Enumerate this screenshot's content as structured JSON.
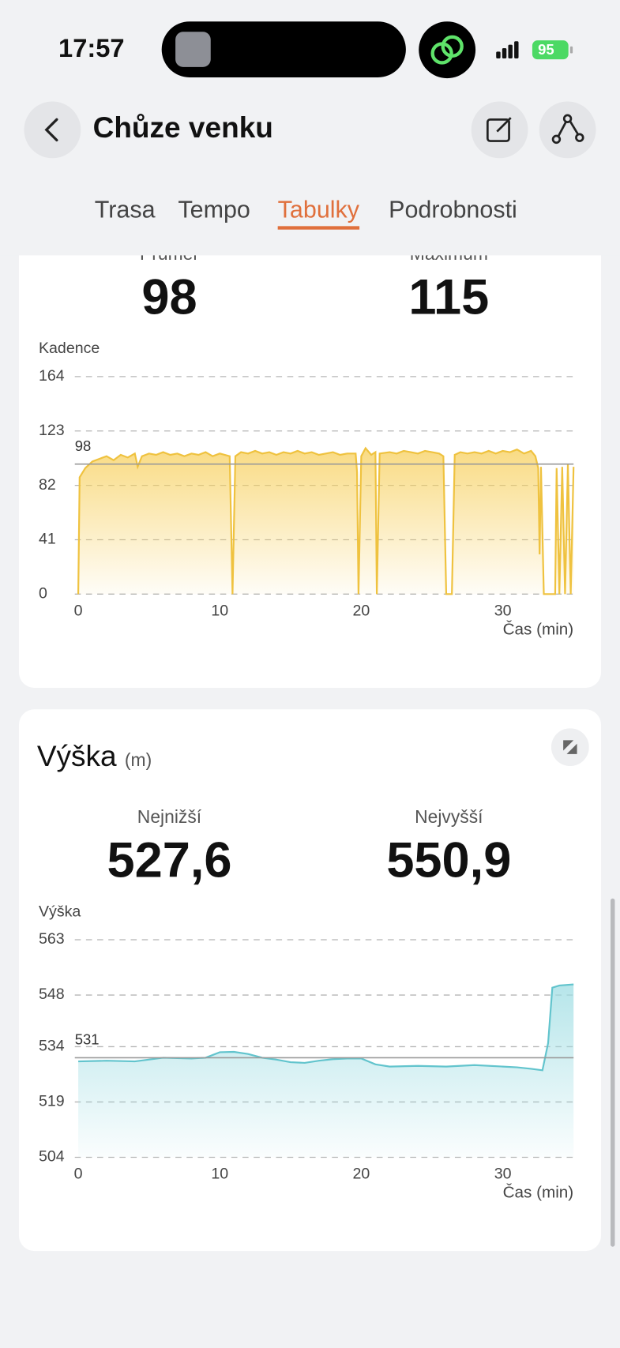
{
  "status_bar": {
    "time": "17:57",
    "battery": "95"
  },
  "header": {
    "title": "Chůze venku"
  },
  "tabs": {
    "items": [
      "Trasa",
      "Tempo",
      "Tabulky",
      "Podrobnosti"
    ],
    "active": 2
  },
  "cadence_card": {
    "stats": [
      {
        "label": "Průměr",
        "value": "98"
      },
      {
        "label": "Maximum",
        "value": "115"
      }
    ]
  },
  "elevation_card": {
    "title": "Výška",
    "unit": "(m)",
    "stats": [
      {
        "label": "Nejnižší",
        "value": "527,6"
      },
      {
        "label": "Nejvyšší",
        "value": "550,9"
      }
    ]
  },
  "chart_data": [
    {
      "type": "area",
      "y_label": "Kadence",
      "x_label": "Čas (min)",
      "x": [
        0,
        0.1,
        0.5,
        1,
        1.5,
        2,
        2.5,
        3,
        3.5,
        4,
        4.2,
        4.5,
        5,
        5.5,
        6,
        6.5,
        7,
        7.5,
        8,
        8.5,
        9,
        9.5,
        10,
        10.7,
        10.9,
        11.1,
        11.5,
        12,
        12.5,
        13,
        13.5,
        14,
        14.5,
        15,
        15.5,
        16,
        16.5,
        17,
        17.5,
        18,
        18.5,
        19,
        19.6,
        19.7,
        19.8,
        20,
        20.3,
        20.7,
        21,
        21.1,
        21.3,
        22,
        22.5,
        23,
        23.5,
        24,
        24.5,
        25,
        25.5,
        25.8,
        26,
        26.4,
        26.6,
        27,
        27.5,
        28,
        28.5,
        29,
        29.5,
        30,
        30.5,
        31,
        31.5,
        32,
        32.3,
        32.5,
        32.6,
        32.7,
        32.9,
        33.7,
        33.8,
        34,
        34.2,
        34.4,
        34.6,
        34.8,
        35
      ],
      "values": [
        0,
        88,
        95,
        100,
        102,
        104,
        101,
        105,
        103,
        106,
        96,
        104,
        106,
        105,
        107,
        105,
        106,
        104,
        106,
        105,
        107,
        104,
        106,
        104,
        0,
        104,
        107,
        106,
        108,
        106,
        107,
        105,
        107,
        106,
        108,
        106,
        107,
        105,
        106,
        107,
        105,
        106,
        106,
        92,
        0,
        104,
        110,
        105,
        107,
        0,
        106,
        107,
        106,
        108,
        107,
        106,
        108,
        107,
        106,
        104,
        0,
        0,
        105,
        107,
        106,
        107,
        106,
        108,
        106,
        108,
        107,
        109,
        106,
        108,
        104,
        95,
        30,
        96,
        0,
        0,
        95,
        0,
        96,
        0,
        98,
        0,
        96
      ],
      "color": "#efc23f",
      "fill_color": "#f7cf5a",
      "mean": 98,
      "mean_color": "#9a9a9a",
      "xlim": [
        0,
        35
      ],
      "xticks": [
        0,
        10,
        20,
        30
      ],
      "ylim": [
        0,
        164
      ],
      "yticks": [
        0,
        41,
        82,
        123,
        164
      ],
      "grid": true
    },
    {
      "type": "area",
      "y_label": "Výška",
      "x_label": "Čas (min)",
      "x": [
        0,
        2,
        4,
        6,
        8,
        9,
        10,
        11,
        12,
        13,
        14,
        15,
        16,
        17,
        18,
        19,
        20,
        21,
        22,
        24,
        26,
        28,
        30,
        31,
        32,
        32.8,
        33.2,
        33.5,
        34,
        35
      ],
      "values": [
        530,
        530.2,
        530,
        531,
        530.8,
        531,
        532.5,
        532.6,
        532,
        531,
        530.5,
        529.8,
        529.6,
        530.2,
        530.6,
        530.8,
        530.8,
        529.2,
        528.6,
        528.8,
        528.6,
        529,
        528.6,
        528.4,
        528,
        527.6,
        535,
        550,
        550.6,
        550.9
      ],
      "color": "#62c4cd",
      "fill_color": "#9edde3",
      "mean": 531,
      "mean_color": "#9a9a9a",
      "xlim": [
        0,
        35
      ],
      "xticks": [
        0,
        10,
        20,
        30
      ],
      "ylim": [
        504,
        563
      ],
      "yticks": [
        504,
        519,
        534,
        548,
        563
      ],
      "grid": true
    }
  ]
}
